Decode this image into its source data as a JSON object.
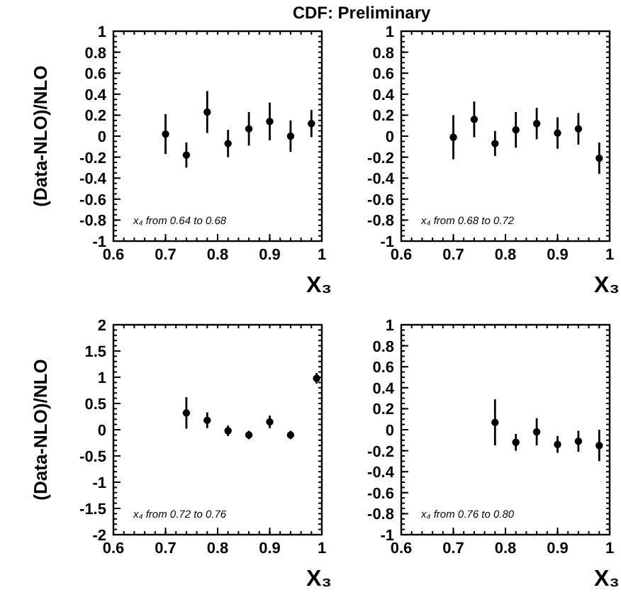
{
  "chart_data": [
    {
      "type": "scatter",
      "title": "CDF: Preliminary",
      "xlabel": "X₃",
      "ylabel": "(Data-NLO)/NLO",
      "marker": "circle",
      "annotations": [
        "x₄ from 0.64 to 0.68"
      ],
      "xlim": [
        0.6,
        1
      ],
      "xticks": [
        0.6,
        0.7,
        0.8,
        0.9,
        1
      ],
      "ylim": [
        -1,
        1
      ],
      "yticks": [
        -1,
        -0.8,
        -0.6,
        -0.4,
        -0.2,
        0,
        0.2,
        0.4,
        0.6,
        0.8,
        1
      ],
      "x": [
        0.7,
        0.74,
        0.78,
        0.82,
        0.86,
        0.9,
        0.94,
        0.98
      ],
      "values": [
        0.02,
        -0.18,
        0.23,
        -0.07,
        0.07,
        0.14,
        0.0,
        0.12
      ],
      "errors": [
        0.19,
        0.12,
        0.2,
        0.13,
        0.16,
        0.18,
        0.15,
        0.13
      ],
      "color": "#000000"
    },
    {
      "type": "scatter",
      "xlabel": "X₃",
      "marker": "circle",
      "annotations": [
        "x₄ from 0.68 to 0.72"
      ],
      "xlim": [
        0.6,
        1
      ],
      "xticks": [
        0.6,
        0.7,
        0.8,
        0.9,
        1
      ],
      "ylim": [
        -1,
        1
      ],
      "yticks": [
        -1,
        -0.8,
        -0.6,
        -0.4,
        -0.2,
        0,
        0.2,
        0.4,
        0.6,
        0.8,
        1
      ],
      "x": [
        0.7,
        0.74,
        0.78,
        0.82,
        0.86,
        0.9,
        0.94,
        0.98
      ],
      "values": [
        -0.01,
        0.16,
        -0.07,
        0.06,
        0.12,
        0.03,
        0.07,
        -0.21
      ],
      "errors": [
        0.21,
        0.17,
        0.12,
        0.17,
        0.15,
        0.15,
        0.15,
        0.15
      ],
      "color": "#000000"
    },
    {
      "type": "scatter",
      "xlabel": "X₃",
      "ylabel": "(Data-NLO)/NLO",
      "marker": "circle",
      "annotations": [
        "x₄ from 0.72 to 0.76"
      ],
      "xlim": [
        0.6,
        1
      ],
      "xticks": [
        0.6,
        0.7,
        0.8,
        0.9,
        1
      ],
      "ylim": [
        -2,
        2
      ],
      "yticks": [
        -2,
        -1.5,
        -1,
        -0.5,
        0,
        0.5,
        1,
        1.5,
        2
      ],
      "x": [
        0.74,
        0.78,
        0.82,
        0.86,
        0.9,
        0.94,
        0.99
      ],
      "values": [
        0.32,
        0.18,
        -0.02,
        -0.1,
        0.15,
        -0.1,
        0.98
      ],
      "errors": [
        0.3,
        0.15,
        0.1,
        0.08,
        0.12,
        0.08,
        0.1
      ],
      "color": "#000000"
    },
    {
      "type": "scatter",
      "xlabel": "X₃",
      "marker": "circle",
      "annotations": [
        "x₄ from 0.76 to 0.80"
      ],
      "xlim": [
        0.6,
        1
      ],
      "xticks": [
        0.6,
        0.7,
        0.8,
        0.9,
        1
      ],
      "ylim": [
        -1,
        1
      ],
      "yticks": [
        -1,
        -0.8,
        -0.6,
        -0.4,
        -0.2,
        0,
        0.2,
        0.4,
        0.6,
        0.8,
        1
      ],
      "x": [
        0.78,
        0.82,
        0.86,
        0.9,
        0.94,
        0.98
      ],
      "values": [
        0.07,
        -0.12,
        -0.02,
        -0.14,
        -0.11,
        -0.15
      ],
      "errors": [
        0.22,
        0.08,
        0.13,
        0.08,
        0.1,
        0.15
      ],
      "color": "#000000"
    }
  ]
}
